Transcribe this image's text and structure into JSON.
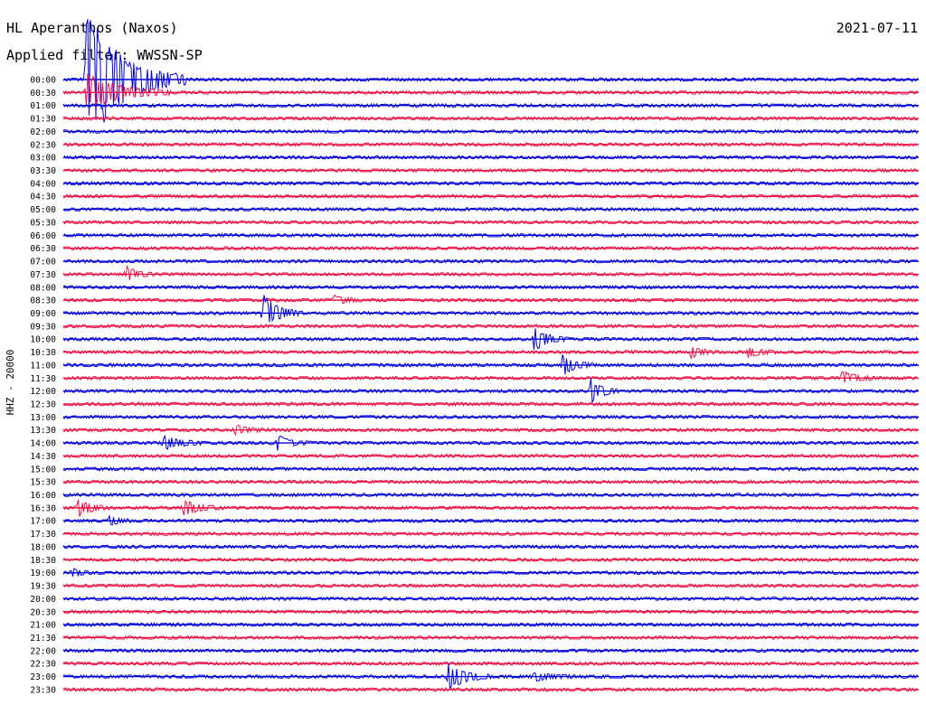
{
  "station_title": "HL Aperanthos (Naxos)",
  "date": "2021-07-11",
  "filter_label": "Applied filter: WWSSN-SP",
  "y_axis_label": "HHZ - 20000",
  "colors": {
    "even_trace": "#0000dd",
    "odd_trace": "#ee1144",
    "text": "#000000",
    "background": "#ffffff"
  },
  "chart_data": {
    "type": "line",
    "title": "HL Aperanthos (Naxos)",
    "ylabel": "HHZ - 20000",
    "rows": [
      "00:00",
      "00:30",
      "01:00",
      "01:30",
      "02:00",
      "02:30",
      "03:00",
      "03:30",
      "04:00",
      "04:30",
      "05:00",
      "05:30",
      "06:00",
      "06:30",
      "07:00",
      "07:30",
      "08:00",
      "08:30",
      "09:00",
      "09:30",
      "10:00",
      "10:30",
      "11:00",
      "11:30",
      "12:00",
      "12:30",
      "13:00",
      "13:30",
      "14:00",
      "14:30",
      "15:00",
      "15:30",
      "16:00",
      "16:30",
      "17:00",
      "17:30",
      "18:00",
      "18:30",
      "19:00",
      "19:30",
      "20:00",
      "20:30",
      "21:00",
      "21:30",
      "22:00",
      "22:30",
      "23:00",
      "23:30"
    ],
    "row_duration_minutes": 30,
    "events": [
      {
        "row": 0,
        "minute": 0.8,
        "amplitude": 9.0,
        "duration": 3.5
      },
      {
        "row": 1,
        "minute": 0.8,
        "amplitude": 2.5,
        "duration": 3.0
      },
      {
        "row": 18,
        "minute": 7.0,
        "amplitude": 2.4,
        "duration": 1.4
      },
      {
        "row": 20,
        "minute": 16.5,
        "amplitude": 1.6,
        "duration": 1.2
      },
      {
        "row": 22,
        "minute": 17.5,
        "amplitude": 1.3,
        "duration": 1.2
      },
      {
        "row": 24,
        "minute": 18.5,
        "amplitude": 1.6,
        "duration": 1.0
      },
      {
        "row": 28,
        "minute": 3.5,
        "amplitude": 0.9,
        "duration": 1.5
      },
      {
        "row": 28,
        "minute": 7.5,
        "amplitude": 1.0,
        "duration": 1.2
      },
      {
        "row": 27,
        "minute": 6.0,
        "amplitude": 0.6,
        "duration": 1.2
      },
      {
        "row": 33,
        "minute": 0.5,
        "amplitude": 1.1,
        "duration": 1.2
      },
      {
        "row": 33,
        "minute": 4.2,
        "amplitude": 1.1,
        "duration": 1.4
      },
      {
        "row": 34,
        "minute": 1.6,
        "amplitude": 0.6,
        "duration": 0.8
      },
      {
        "row": 15,
        "minute": 2.2,
        "amplitude": 1.0,
        "duration": 1.0
      },
      {
        "row": 23,
        "minute": 27.3,
        "amplitude": 0.9,
        "duration": 1.2
      },
      {
        "row": 21,
        "minute": 22.0,
        "amplitude": 0.7,
        "duration": 1.0
      },
      {
        "row": 21,
        "minute": 24.0,
        "amplitude": 0.7,
        "duration": 1.0
      },
      {
        "row": 17,
        "minute": 9.5,
        "amplitude": 0.6,
        "duration": 1.0
      },
      {
        "row": 38,
        "minute": 0.3,
        "amplitude": 0.6,
        "duration": 0.8
      },
      {
        "row": 46,
        "minute": 13.5,
        "amplitude": 1.8,
        "duration": 1.5
      },
      {
        "row": 46,
        "minute": 16.5,
        "amplitude": 0.5,
        "duration": 1.5
      }
    ]
  }
}
